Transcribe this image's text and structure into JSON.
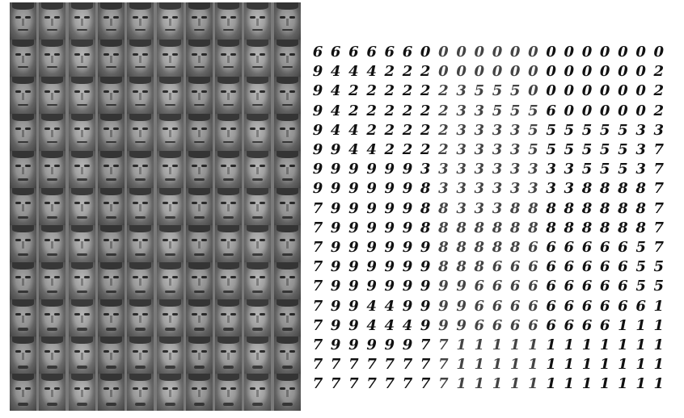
{
  "face_grid": {
    "rows": 11,
    "cols": 10
  },
  "digit_grid": {
    "rows": [
      "66666600000000000000",
      "94442220000000000002",
      "94222222355500000002",
      "94222222335556000002",
      "94422222333355555533",
      "99442222333355555537",
      "99999933333333355537",
      "99999983333333388887",
      "79999988333888888887",
      "79999988888888888887",
      "79999998888866666657",
      "79999998886666666655",
      "79999999966666666655",
      "79944999966666666661",
      "79944499966666666111",
      "79999977111111111111",
      "77777777111111111111",
      "77777777111111111111"
    ]
  }
}
